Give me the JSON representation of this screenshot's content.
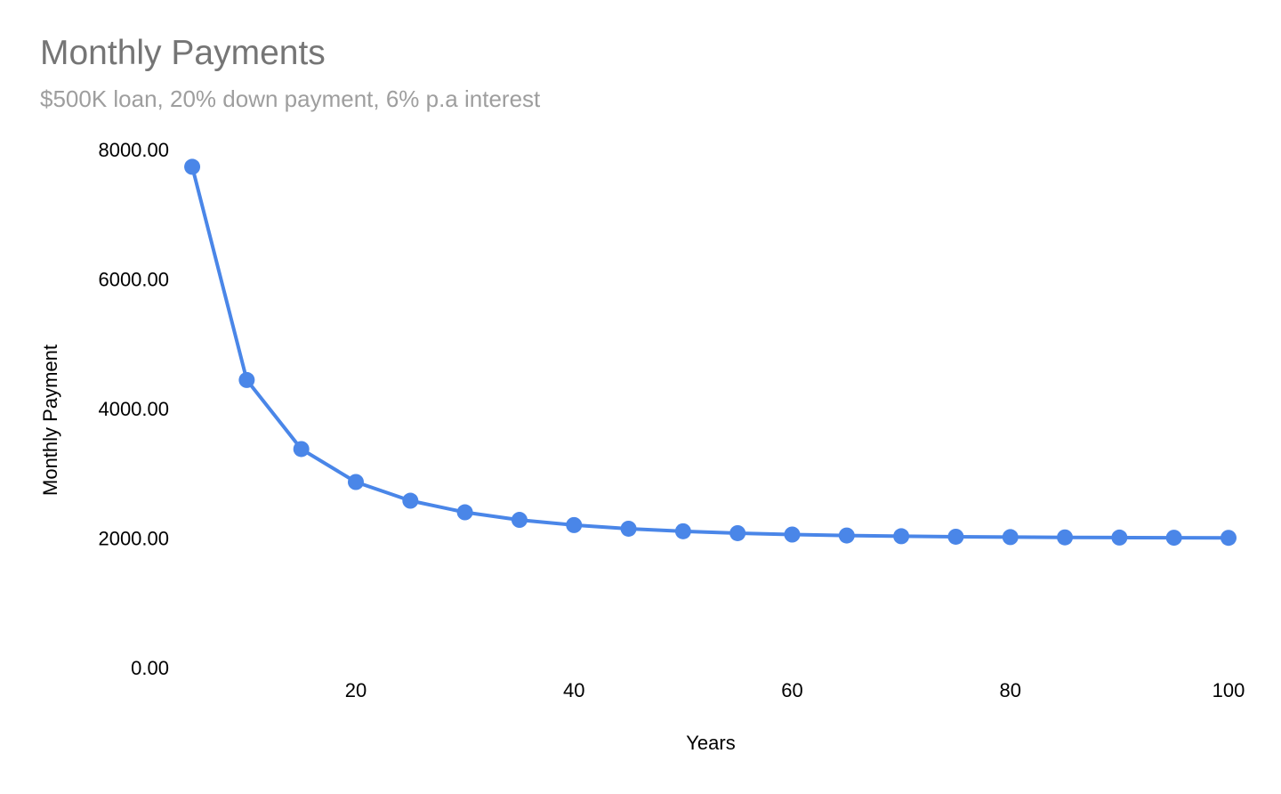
{
  "chart_data": {
    "type": "line",
    "title": "Monthly Payments",
    "subtitle": "$500K loan, 20% down payment, 6% p.a interest",
    "xlabel": "Years",
    "ylabel": "Monthly Payment",
    "xlim": [
      5,
      100
    ],
    "ylim": [
      0,
      8000
    ],
    "x_ticks": [
      20,
      40,
      60,
      80,
      100
    ],
    "y_ticks": [
      0,
      2000,
      4000,
      6000,
      8000
    ],
    "y_tick_labels": [
      "0.00",
      "2000.00",
      "4000.00",
      "6000.00",
      "8000.00"
    ],
    "grid": false,
    "legend": "none",
    "color": "#4a86e8",
    "series": [
      {
        "x": [
          5,
          10,
          15,
          20,
          25,
          30,
          35,
          40,
          45,
          50,
          55,
          60,
          65,
          70,
          75,
          80,
          85,
          90,
          95,
          100
        ],
        "y": [
          7733,
          4441,
          3375,
          2866,
          2577,
          2398,
          2281,
          2201,
          2145,
          2105,
          2076,
          2055,
          2040,
          2029,
          2021,
          2015,
          2011,
          2008,
          2006,
          2004
        ]
      }
    ]
  }
}
